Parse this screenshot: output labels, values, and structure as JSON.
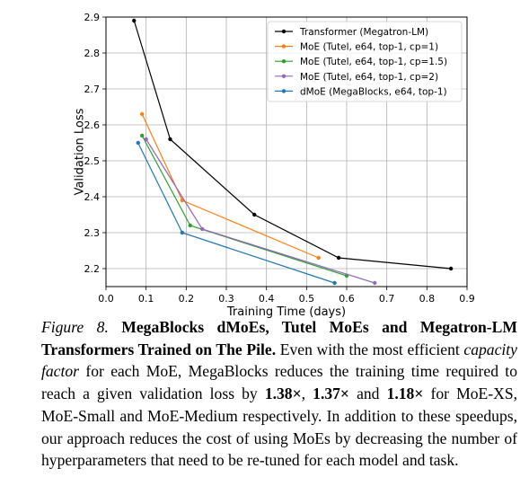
{
  "chart_data": {
    "type": "line",
    "xlabel": "Training Time (days)",
    "ylabel": "Validation Loss",
    "xlim": [
      0.0,
      0.9
    ],
    "ylim": [
      2.15,
      2.9
    ],
    "xticks": [
      "0.0",
      "0.1",
      "0.2",
      "0.3",
      "0.4",
      "0.5",
      "0.6",
      "0.7",
      "0.8",
      "0.9"
    ],
    "yticks": [
      "2.2",
      "2.3",
      "2.4",
      "2.5",
      "2.6",
      "2.7",
      "2.8",
      "2.9"
    ],
    "grid": true,
    "legend_position": "top-right",
    "series": [
      {
        "name": "Transformer (Megatron-LM)",
        "color": "#000000",
        "x": [
          0.07,
          0.16,
          0.37,
          0.58,
          0.86
        ],
        "y": [
          2.89,
          2.56,
          2.35,
          2.23,
          2.2
        ]
      },
      {
        "name": "MoE (Tutel, e64, top-1, cp=1)",
        "color": "#ff7f0e",
        "x": [
          0.09,
          0.19,
          0.53
        ],
        "y": [
          2.63,
          2.39,
          2.23
        ]
      },
      {
        "name": "MoE (Tutel, e64, top-1, cp=1.5)",
        "color": "#2ca02c",
        "x": [
          0.09,
          0.21,
          0.6
        ],
        "y": [
          2.57,
          2.32,
          2.18
        ]
      },
      {
        "name": "MoE (Tutel, e64, top-1, cp=2)",
        "color": "#9467bd",
        "x": [
          0.1,
          0.24,
          0.67
        ],
        "y": [
          2.56,
          2.31,
          2.16
        ]
      },
      {
        "name": "dMoE (MegaBlocks, e64, top-1)",
        "color": "#1f77b4",
        "x": [
          0.08,
          0.19,
          0.57
        ],
        "y": [
          2.55,
          2.3,
          2.16
        ]
      }
    ]
  },
  "caption": {
    "figure_label": "Figure 8.",
    "title": "MegaBlocks dMoEs, Tutel MoEs and Megatron-LM Transformers Trained on The Pile.",
    "text_1": "Even with the most efficient",
    "capacity_factor": "capacity factor",
    "text_2": "for each MoE, MegaBlocks reduces the training time required to reach a given validation loss by",
    "speedup_1": "1.38×",
    "sep_1": ",",
    "speedup_2": "1.37×",
    "sep_2": "and",
    "speedup_3": "1.18×",
    "text_3": "for MoE-XS, MoE-Small and MoE-Medium respectively. In addition to these speedups, our approach reduces the cost of using MoEs by decreasing the number of hyperparameters that need to be re-tuned for each model and task."
  }
}
